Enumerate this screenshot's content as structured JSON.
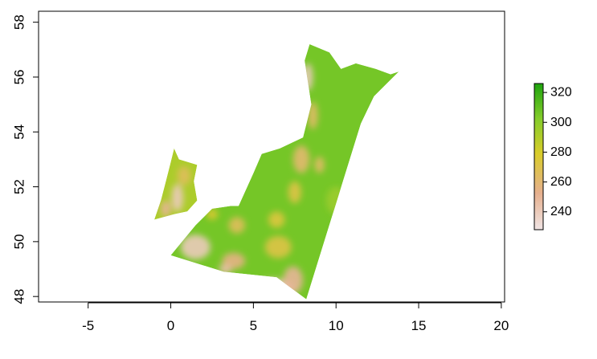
{
  "chart_data": {
    "type": "heatmap",
    "x_axis": {
      "range": [
        -8,
        20.2
      ],
      "ticks": [
        -5,
        0,
        5,
        10,
        15,
        20
      ],
      "tick_labels": [
        "-5",
        "0",
        "5",
        "10",
        "15",
        "20"
      ]
    },
    "y_axis": {
      "range": [
        47.8,
        58.4
      ],
      "ticks": [
        48,
        50,
        52,
        54,
        56,
        58
      ],
      "tick_labels": [
        "48",
        "50",
        "52",
        "54",
        "56",
        "58"
      ]
    },
    "colorbar": {
      "range": [
        228,
        326
      ],
      "ticks": [
        240,
        260,
        280,
        300,
        320
      ],
      "tick_labels": [
        "240",
        "260",
        "280",
        "300",
        "320"
      ],
      "colors": [
        "#f0e4e4",
        "#e6b08e",
        "#d9cc2a",
        "#84cc2b",
        "#1ea40e"
      ],
      "placement": "right"
    },
    "grid": false,
    "regions": [
      {
        "name": "main-landmass",
        "value": 305,
        "polygon": [
          [
            4.1,
            51.3
          ],
          [
            5.0,
            52.5
          ],
          [
            5.5,
            53.2
          ],
          [
            6.6,
            53.4
          ],
          [
            8.0,
            53.8
          ],
          [
            8.5,
            55.0
          ],
          [
            8.1,
            56.6
          ],
          [
            8.4,
            57.2
          ],
          [
            9.6,
            56.9
          ],
          [
            10.3,
            56.3
          ],
          [
            11.2,
            56.5
          ],
          [
            12.4,
            56.3
          ],
          [
            13.3,
            56.1
          ],
          [
            13.8,
            56.2
          ],
          [
            12.3,
            55.3
          ],
          [
            11.9,
            54.8
          ],
          [
            11.5,
            54.3
          ],
          [
            8.2,
            47.9
          ],
          [
            6.4,
            48.7
          ],
          [
            3.2,
            48.9
          ],
          [
            0.0,
            49.5
          ],
          [
            1.5,
            50.6
          ],
          [
            2.5,
            51.2
          ],
          [
            3.6,
            51.3
          ]
        ]
      },
      {
        "name": "england-strip",
        "value": 290,
        "polygon": [
          [
            -1.0,
            50.8
          ],
          [
            0.2,
            51.0
          ],
          [
            1.0,
            51.1
          ],
          [
            1.6,
            51.5
          ],
          [
            1.4,
            52.2
          ],
          [
            1.6,
            52.8
          ],
          [
            0.5,
            53.0
          ],
          [
            0.2,
            53.4
          ],
          [
            0.0,
            52.9
          ],
          [
            -0.3,
            52.2
          ],
          [
            -0.6,
            51.5
          ]
        ]
      }
    ],
    "patches": [
      {
        "value": 240,
        "center": [
          0.4,
          51.6
        ],
        "radius": [
          0.35,
          0.5
        ]
      },
      {
        "value": 265,
        "center": [
          0.8,
          52.4
        ],
        "radius": [
          0.4,
          0.35
        ]
      },
      {
        "value": 250,
        "center": [
          -0.3,
          51.2
        ],
        "radius": [
          0.3,
          0.3
        ]
      },
      {
        "value": 240,
        "center": [
          1.5,
          49.8
        ],
        "radius": [
          0.9,
          0.45
        ]
      },
      {
        "value": 255,
        "center": [
          3.8,
          49.3
        ],
        "radius": [
          0.7,
          0.3
        ]
      },
      {
        "value": 240,
        "center": [
          6.2,
          48.3
        ],
        "radius": [
          1.3,
          0.35
        ]
      },
      {
        "value": 250,
        "center": [
          7.4,
          48.6
        ],
        "radius": [
          0.6,
          0.5
        ]
      },
      {
        "value": 270,
        "center": [
          6.5,
          49.8
        ],
        "radius": [
          0.8,
          0.4
        ]
      },
      {
        "value": 265,
        "center": [
          4.0,
          50.6
        ],
        "radius": [
          0.5,
          0.3
        ]
      },
      {
        "value": 272,
        "center": [
          6.4,
          50.8
        ],
        "radius": [
          0.5,
          0.3
        ]
      },
      {
        "value": 260,
        "center": [
          7.9,
          53.0
        ],
        "radius": [
          0.5,
          0.5
        ]
      },
      {
        "value": 270,
        "center": [
          7.5,
          51.8
        ],
        "radius": [
          0.4,
          0.4
        ]
      },
      {
        "value": 262,
        "center": [
          8.6,
          54.6
        ],
        "radius": [
          0.3,
          0.5
        ]
      },
      {
        "value": 240,
        "center": [
          8.3,
          56.0
        ],
        "radius": [
          0.3,
          0.5
        ]
      },
      {
        "value": 262,
        "center": [
          9.0,
          52.8
        ],
        "radius": [
          0.3,
          0.3
        ]
      },
      {
        "value": 295,
        "center": [
          10.0,
          51.5
        ],
        "radius": [
          0.6,
          0.5
        ]
      },
      {
        "value": 275,
        "center": [
          2.5,
          51.0
        ],
        "radius": [
          0.35,
          0.2
        ]
      },
      {
        "value": 245,
        "center": [
          3.3,
          49.0
        ],
        "radius": [
          0.4,
          0.18
        ]
      }
    ]
  }
}
